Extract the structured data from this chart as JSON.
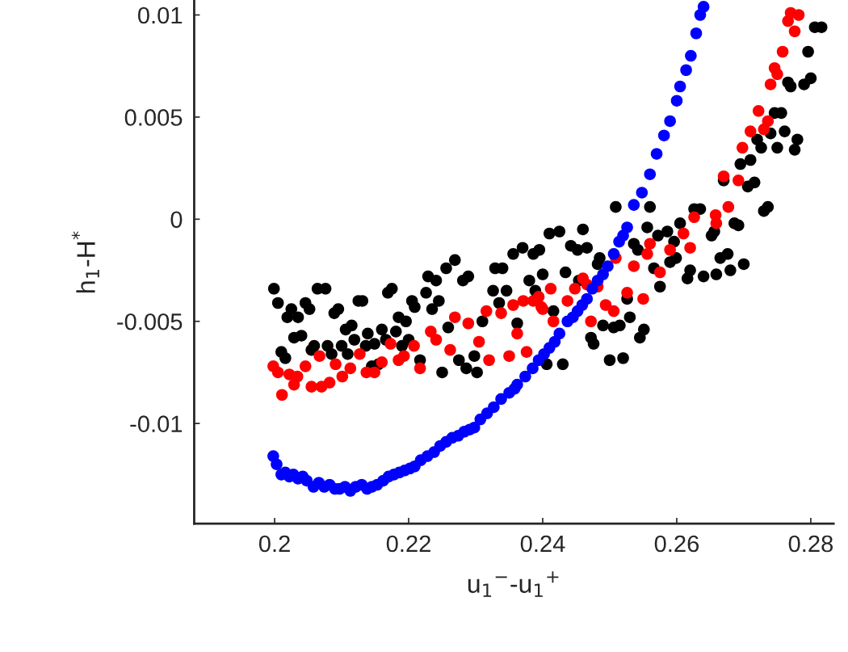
{
  "chart_data": {
    "type": "scatter",
    "xlabel": "u$_{1}$$^{−}$-u$_{1}$$^{+}$",
    "ylabel": "h$_{1}$-H$^{*}$",
    "xlim": [
      0.188,
      0.2834
    ],
    "ylim": [
      -0.0149,
      0.0107
    ],
    "xticks": [
      0.2,
      0.22,
      0.24,
      0.26,
      0.28
    ],
    "yticks": [
      -0.01,
      -0.005,
      0,
      0.005,
      0.01
    ],
    "grid": false,
    "marker": "circle",
    "series": [
      {
        "color": "#000000",
        "x": [
          0.1999,
          0.2005,
          0.201,
          0.2016,
          0.2019,
          0.2025,
          0.2029,
          0.2035,
          0.204,
          0.2046,
          0.2052,
          0.2055,
          0.2059,
          0.2064,
          0.2076,
          0.2079,
          0.2085,
          0.2089,
          0.2095,
          0.21,
          0.2106,
          0.2109,
          0.2115,
          0.2119,
          0.2125,
          0.2131,
          0.2136,
          0.2139,
          0.2145,
          0.2149,
          0.2155,
          0.216,
          0.2166,
          0.2169,
          0.2175,
          0.2181,
          0.2185,
          0.219,
          0.2196,
          0.22,
          0.2205,
          0.2209,
          0.2217,
          0.2226,
          0.2229,
          0.2235,
          0.2241,
          0.2245,
          0.225,
          0.2256,
          0.2259,
          0.2269,
          0.2275,
          0.2281,
          0.2286,
          0.2289,
          0.2298,
          0.2302,
          0.231,
          0.2356,
          0.237,
          0.2386,
          0.2395,
          0.241,
          0.2425,
          0.2329,
          0.234,
          0.2326,
          0.2346,
          0.2335,
          0.2362,
          0.238,
          0.2389,
          0.24,
          0.2416,
          0.2434,
          0.2406,
          0.243,
          0.2442,
          0.2452,
          0.246,
          0.2466,
          0.2454,
          0.2482,
          0.2485,
          0.2472,
          0.2476,
          0.249,
          0.2496,
          0.2506,
          0.2515,
          0.2526,
          0.253,
          0.25,
          0.252,
          0.2509,
          0.2536,
          0.2542,
          0.2545,
          0.2551,
          0.2556,
          0.256,
          0.2566,
          0.2572,
          0.2575,
          0.2586,
          0.2596,
          0.259,
          0.2599,
          0.2605,
          0.261,
          0.2616,
          0.262,
          0.264,
          0.2659,
          0.2665,
          0.2676,
          0.268,
          0.27,
          0.2626,
          0.2635,
          0.2652,
          0.2656,
          0.2686,
          0.2692,
          0.273,
          0.2736,
          0.267,
          0.2706,
          0.2716,
          0.2695,
          0.271,
          0.272,
          0.2726,
          0.274,
          0.275,
          0.2761,
          0.2776,
          0.278,
          0.2746,
          0.2756,
          0.2766,
          0.277,
          0.279,
          0.28,
          0.2796,
          0.2806,
          0.2816
        ],
        "values": [
          -0.0034,
          -0.0041,
          -0.0065,
          -0.0068,
          -0.0048,
          -0.0044,
          -0.0058,
          -0.0048,
          -0.0057,
          -0.0041,
          -0.0044,
          -0.0064,
          -0.0062,
          -0.0034,
          -0.0034,
          -0.0062,
          -0.0066,
          -0.0046,
          -0.0044,
          -0.0062,
          -0.0054,
          -0.0066,
          -0.0052,
          -0.0059,
          -0.004,
          -0.004,
          -0.0062,
          -0.0056,
          -0.0072,
          -0.0061,
          -0.0071,
          -0.0054,
          -0.0059,
          -0.0036,
          -0.0034,
          -0.0055,
          -0.0048,
          -0.0062,
          -0.005,
          -0.0059,
          -0.004,
          -0.0043,
          -0.0069,
          -0.0036,
          -0.0028,
          -0.0044,
          -0.003,
          -0.004,
          -0.0075,
          -0.0024,
          -0.0053,
          -0.002,
          -0.0069,
          -0.003,
          -0.0073,
          -0.0028,
          -0.0067,
          -0.0075,
          -0.005,
          -0.0017,
          -0.0014,
          -0.0017,
          -0.0015,
          -0.0007,
          -0.0006,
          -0.0024,
          -0.0024,
          -0.0035,
          -0.0035,
          -0.0041,
          -0.0051,
          -0.003,
          -0.0035,
          -0.0027,
          -0.0045,
          -0.0026,
          -0.0071,
          -0.0071,
          -0.0013,
          -0.0015,
          -0.0005,
          -0.0014,
          -0.003,
          -0.0022,
          -0.0019,
          -0.0058,
          -0.0061,
          -0.0052,
          null,
          -0.0053,
          -0.0052,
          -0.0039,
          -0.0048,
          -0.0069,
          -0.0068,
          0.0006,
          -0.0012,
          -0.0015,
          -0.0058,
          -0.0054,
          -0.0004,
          0.0006,
          -0.0024,
          -0.0008,
          -0.0033,
          -0.0006,
          -0.0011,
          -0.0021,
          -0.0019,
          -0.0002,
          null,
          -0.0029,
          -0.0025,
          -0.0028,
          -0.0027,
          -0.0019,
          -0.0017,
          -0.0025,
          -0.0022,
          0.0005,
          0.0005,
          -0.0008,
          -0.0006,
          -0.0002,
          -0.0003,
          0.0004,
          0.0006,
          0.0019,
          0.0016,
          0.0018,
          0.0027,
          0.0029,
          0.0039,
          0.0035,
          0.0042,
          0.0035,
          0.0043,
          0.0034,
          0.0039,
          0.0052,
          0.0052,
          0.0067,
          0.0065,
          0.0066,
          0.0069,
          0.0082,
          0.0094,
          0.0094
        ]
      },
      {
        "color": "#ff0000",
        "x": [
          0.1998,
          0.2005,
          0.2011,
          0.2022,
          0.2034,
          0.2029,
          0.2046,
          0.2055,
          0.207,
          0.2067,
          0.2082,
          0.2091,
          0.2101,
          0.2113,
          0.2127,
          0.2137,
          0.2149,
          0.216,
          0.2173,
          0.2185,
          0.2193,
          0.2208,
          0.2217,
          0.2233,
          0.2241,
          0.2262,
          0.2269,
          0.2289,
          0.2305,
          0.2316,
          0.232,
          0.2338,
          0.235,
          0.2356,
          0.2362,
          0.2376,
          0.2386,
          0.2398,
          0.2371,
          0.2394,
          0.24,
          0.2412,
          0.2416,
          0.2437,
          0.2448,
          0.246,
          0.2466,
          0.2482,
          0.2472,
          0.2494,
          0.2506,
          0.2509,
          0.2526,
          0.2536,
          0.255,
          0.2556,
          0.256,
          0.2575,
          0.259,
          0.261,
          0.262,
          0.2626,
          0.2658,
          0.2659,
          0.2677,
          0.2692,
          0.267,
          0.2698,
          0.271,
          0.273,
          0.2736,
          0.2722,
          0.274,
          0.275,
          0.2746,
          0.2758,
          0.2766,
          0.2776,
          0.277,
          0.2782
        ],
        "values": [
          -0.0072,
          -0.0075,
          -0.0086,
          -0.0076,
          -0.0077,
          -0.0081,
          -0.0072,
          -0.0082,
          -0.0082,
          -0.0067,
          -0.008,
          -0.0071,
          -0.0077,
          -0.0073,
          -0.0066,
          -0.0075,
          -0.0075,
          -0.007,
          -0.0061,
          -0.0069,
          -0.0067,
          -0.0062,
          -0.0073,
          -0.0055,
          -0.0059,
          -0.0064,
          -0.0048,
          -0.0051,
          -0.006,
          -0.0045,
          -0.0069,
          -0.0046,
          -0.0067,
          -0.0042,
          -0.0056,
          -0.0065,
          -0.004,
          -0.0043,
          -0.004,
          -0.0038,
          -0.0044,
          -0.0034,
          -0.005,
          -0.004,
          -0.0034,
          -0.0029,
          -0.0032,
          -0.0033,
          -0.005,
          -0.0042,
          -0.0045,
          -0.0019,
          -0.0036,
          -0.0023,
          -0.0039,
          -0.0017,
          -0.0012,
          -0.0026,
          -0.0015,
          -0.0007,
          -0.0014,
          0.0001,
          0.0002,
          -0.0002,
          0.0006,
          0.0019,
          0.0021,
          0.0035,
          0.0043,
          0.0044,
          0.0048,
          0.0053,
          0.0066,
          0.0071,
          0.0074,
          0.0082,
          0.0097,
          0.0092,
          0.0101,
          0.01
        ]
      },
      {
        "color": "#0000ff",
        "x": [
          0.1998,
          0.2003,
          0.201,
          0.2016,
          0.2022,
          0.2028,
          0.2035,
          0.2042,
          0.2048,
          0.2058,
          0.2066,
          0.2074,
          0.2082,
          0.209,
          0.2097,
          0.2105,
          0.2113,
          0.2121,
          0.213,
          0.2138,
          0.2145,
          0.2153,
          0.2162,
          0.217,
          0.2178,
          0.2186,
          0.2194,
          0.2202,
          0.2209,
          0.2218,
          0.2228,
          0.2238,
          0.2247,
          0.2256,
          0.2265,
          0.2274,
          0.2283,
          0.2291,
          0.2298,
          0.2307,
          0.2317,
          0.2327,
          0.2338,
          0.235,
          0.2358,
          0.2362,
          0.2374,
          0.2385,
          0.2394,
          0.2402,
          0.241,
          0.2418,
          0.2425,
          0.2437,
          0.2445,
          0.2452,
          0.2459,
          0.2466,
          0.2474,
          0.2482,
          0.249,
          0.2497,
          0.2506,
          0.2514,
          0.252,
          0.2526,
          0.2536,
          0.2548,
          0.256,
          0.257,
          0.2581,
          0.259,
          0.26,
          0.2605,
          0.2614,
          0.2621,
          0.2629,
          0.2635,
          0.264
        ],
        "values": [
          -0.0116,
          -0.012,
          -0.0125,
          -0.0124,
          -0.0126,
          -0.0125,
          -0.0127,
          -0.0126,
          -0.0128,
          -0.0131,
          -0.0129,
          -0.0131,
          -0.013,
          -0.0132,
          -0.0132,
          -0.0131,
          -0.0133,
          -0.0131,
          -0.013,
          -0.0132,
          -0.0131,
          -0.013,
          -0.0128,
          -0.0126,
          -0.0125,
          -0.0124,
          -0.0123,
          -0.0122,
          -0.0121,
          -0.0118,
          -0.0116,
          -0.0114,
          -0.0111,
          -0.0109,
          -0.0107,
          -0.0106,
          -0.0104,
          -0.0103,
          -0.0102,
          -0.0098,
          -0.0095,
          -0.0092,
          -0.0088,
          -0.0085,
          -0.0083,
          -0.0081,
          -0.0077,
          -0.0073,
          -0.0069,
          -0.0066,
          -0.0063,
          -0.006,
          -0.0056,
          -0.005,
          -0.0048,
          -0.0045,
          -0.0042,
          -0.0039,
          -0.0034,
          -0.003,
          -0.0027,
          -0.0023,
          -0.0017,
          -0.0011,
          -0.0008,
          -0.0004,
          0.0007,
          0.0013,
          0.0022,
          0.0032,
          0.0041,
          0.0048,
          0.0058,
          0.0065,
          0.0073,
          0.008,
          0.0091,
          0.01,
          0.0104
        ]
      }
    ]
  }
}
